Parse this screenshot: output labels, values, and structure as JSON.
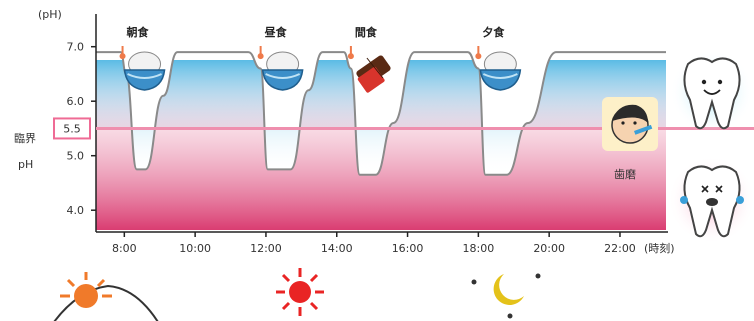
{
  "chart_data": {
    "type": "line",
    "ylabel": "(pH)",
    "xlabel": "(時刻)",
    "x_ticks": [
      "8:00",
      "10:00",
      "12:00",
      "14:00",
      "16:00",
      "18:00",
      "20:00",
      "22:00"
    ],
    "y_ticks": [
      "7.0",
      "6.0",
      "5.0",
      "4.0"
    ],
    "ylim": [
      3.6,
      7.6
    ],
    "xlim": [
      7.2,
      23.3
    ],
    "critical_ph": {
      "label_line1": "臨界",
      "label_line2": "pH",
      "value": "5.5"
    },
    "meals": [
      {
        "label": "朝食",
        "time": 7.95,
        "icon": "rice-bowl-icon"
      },
      {
        "label": "昼食",
        "time": 11.85,
        "icon": "rice-bowl-icon"
      },
      {
        "label": "間食",
        "time": 14.4,
        "icon": "chocolate-icon"
      },
      {
        "label": "夕食",
        "time": 18.0,
        "icon": "rice-bowl-icon"
      }
    ],
    "annotation": {
      "label": "歯磨",
      "icon": "toothbrushing-child-icon"
    },
    "series": [
      {
        "x": [
          7.2,
          7.9,
          8.05,
          8.35,
          8.6,
          9.1,
          9.5,
          11.5,
          11.85,
          12.05,
          12.7,
          13.2,
          13.6,
          14.2,
          14.4,
          14.65,
          15.1,
          15.6,
          16.2,
          17.7,
          18.0,
          18.2,
          18.8,
          19.4,
          20.2,
          21.0,
          23.3
        ],
        "y": [
          6.9,
          6.9,
          6.5,
          4.75,
          4.75,
          6.1,
          6.9,
          6.9,
          6.6,
          4.75,
          4.75,
          6.2,
          6.9,
          6.9,
          6.6,
          4.65,
          4.65,
          5.6,
          6.9,
          6.9,
          6.6,
          4.65,
          4.65,
          5.6,
          6.9,
          6.9,
          6.9
        ]
      }
    ],
    "colors": {
      "neutral_fill": "#49b6e3",
      "acid_fill": "#d9386e",
      "critical_line": "#ef8fae",
      "meal_marker": "#ef7a4a",
      "curve": "#8a8a8a"
    }
  },
  "time_of_day_icons": [
    "sunrise-icon",
    "sun-icon",
    "moon-stars-icon"
  ],
  "tooth_icons": [
    "healthy-tooth-icon",
    "decayed-tooth-icon"
  ]
}
